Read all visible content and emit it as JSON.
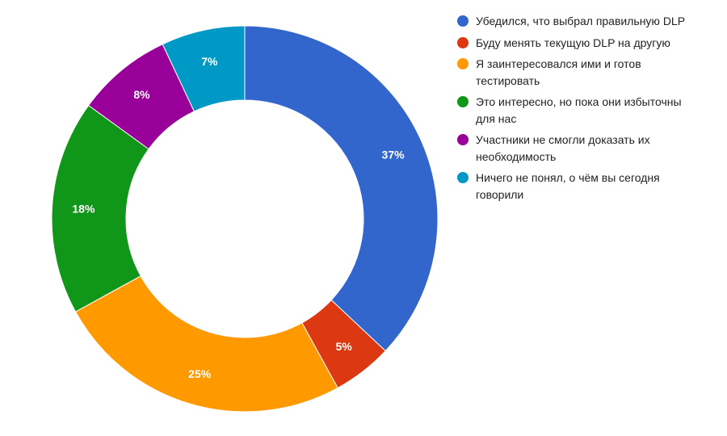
{
  "chart_data": {
    "type": "pie",
    "donut": true,
    "legend_position": "right",
    "categories": [
      "Убедился, что выбрал правильную DLP",
      "Буду менять текущую DLP на другую",
      "Я заинтересовался ими и готов тестировать",
      "Это интересно, но пока они избыточны для нас",
      "Участники не смогли доказать их необходимость",
      "Ничего не понял, о чём вы сегодня говорили"
    ],
    "values": [
      37,
      5,
      25,
      18,
      8,
      7
    ],
    "data_labels": [
      "37%",
      "5%",
      "25%",
      "18%",
      "8%",
      "7%"
    ],
    "colors": [
      "#3366cc",
      "#dc3912",
      "#ff9900",
      "#109618",
      "#990099",
      "#0099c6"
    ]
  }
}
